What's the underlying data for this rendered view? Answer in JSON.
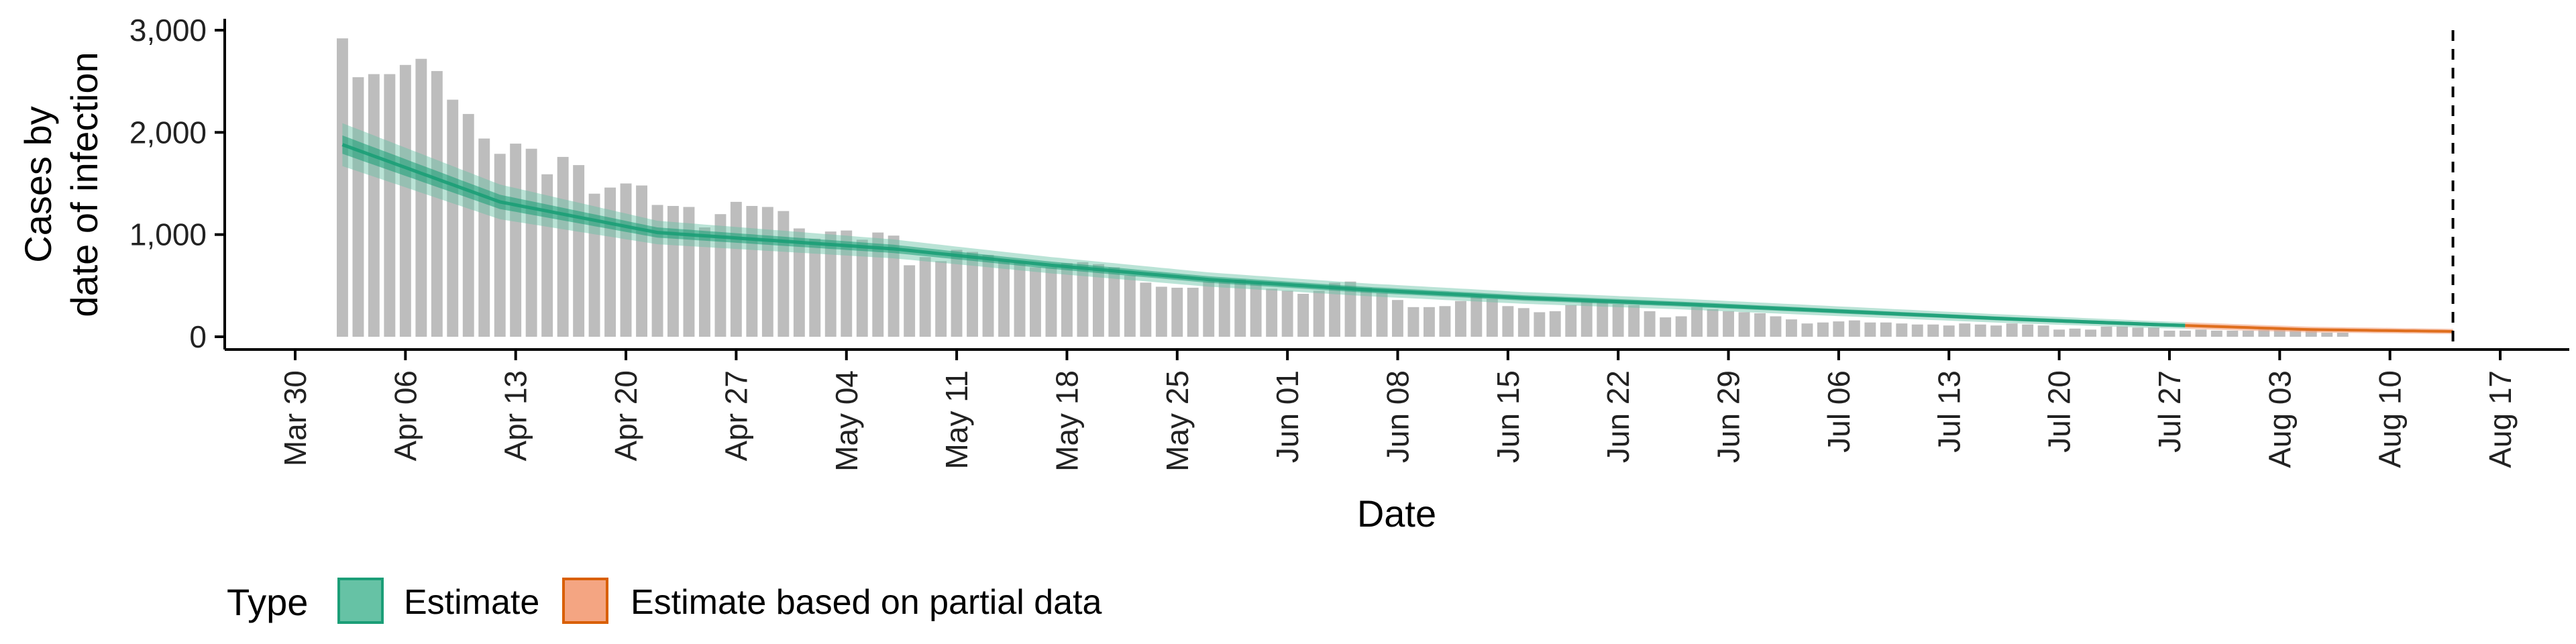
{
  "chart_data": {
    "type": "bar",
    "title": "",
    "xlabel": "Date",
    "ylabel_lines": [
      "Cases by",
      "date of infection"
    ],
    "ylim": [
      0,
      3000
    ],
    "y_ticks": [
      0,
      1000,
      2000,
      3000
    ],
    "y_tick_labels": [
      "0",
      "1,000",
      "2,000",
      "3,000"
    ],
    "x_ticks": [
      "2020-03-30",
      "2020-04-06",
      "2020-04-13",
      "2020-04-20",
      "2020-04-27",
      "2020-05-04",
      "2020-05-11",
      "2020-05-18",
      "2020-05-25",
      "2020-06-01",
      "2020-06-08",
      "2020-06-15",
      "2020-06-22",
      "2020-06-29",
      "2020-07-06",
      "2020-07-13",
      "2020-07-20",
      "2020-07-27",
      "2020-08-03",
      "2020-08-10",
      "2020-08-17"
    ],
    "x_tick_labels": [
      "Mar 30",
      "Apr 06",
      "Apr 13",
      "Apr 20",
      "Apr 27",
      "May 04",
      "May 11",
      "May 18",
      "May 25",
      "Jun 01",
      "Jun 08",
      "Jun 15",
      "Jun 22",
      "Jun 29",
      "Jul 06",
      "Jul 13",
      "Jul 20",
      "Jul 27",
      "Aug 03",
      "Aug 10",
      "Aug 17"
    ],
    "x_start": "2020-04-02",
    "bar_series": {
      "name": "Cases by date of infection",
      "color": "#bdbdbd",
      "values": [
        2920,
        2540,
        2570,
        2570,
        2660,
        2720,
        2600,
        2320,
        2180,
        1940,
        1790,
        1890,
        1840,
        1590,
        1760,
        1680,
        1400,
        1460,
        1500,
        1480,
        1290,
        1280,
        1270,
        1070,
        1200,
        1320,
        1280,
        1270,
        1230,
        1060,
        960,
        1030,
        1040,
        950,
        1020,
        990,
        700,
        780,
        740,
        850,
        830,
        800,
        760,
        730,
        680,
        680,
        720,
        730,
        710,
        680,
        600,
        530,
        490,
        480,
        480,
        540,
        560,
        560,
        530,
        470,
        450,
        420,
        450,
        530,
        540,
        480,
        430,
        360,
        290,
        290,
        300,
        350,
        390,
        370,
        300,
        280,
        240,
        250,
        310,
        350,
        340,
        320,
        310,
        250,
        190,
        200,
        290,
        270,
        250,
        240,
        230,
        200,
        170,
        130,
        140,
        150,
        160,
        140,
        140,
        130,
        120,
        120,
        110,
        130,
        120,
        110,
        130,
        120,
        110,
        70,
        80,
        70,
        100,
        100,
        90,
        90,
        60,
        60,
        70,
        60,
        60,
        60,
        70,
        80,
        60,
        60,
        40,
        40
      ]
    },
    "series": [
      {
        "name": "Estimate",
        "color": "#1b9e77",
        "fill": "#66c2a5",
        "start": "2020-04-02",
        "end": "2020-07-28",
        "median_key": [
          [
            0,
            1880
          ],
          [
            10,
            1320
          ],
          [
            20,
            1020
          ],
          [
            35,
            860
          ],
          [
            45,
            700
          ],
          [
            55,
            560
          ],
          [
            65,
            460
          ],
          [
            75,
            380
          ],
          [
            85,
            320
          ],
          [
            95,
            250
          ],
          [
            105,
            180
          ],
          [
            115,
            120
          ],
          [
            125,
            70
          ],
          [
            135,
            50
          ],
          [
            141,
            40
          ],
          [
            150,
            40
          ]
        ],
        "ci90_width_key": [
          [
            0,
            420
          ],
          [
            10,
            340
          ],
          [
            20,
            230
          ],
          [
            40,
            170
          ],
          [
            60,
            130
          ],
          [
            80,
            110
          ],
          [
            100,
            90
          ],
          [
            120,
            60
          ],
          [
            150,
            40
          ]
        ],
        "ci50_width_key": [
          [
            0,
            180
          ],
          [
            10,
            140
          ],
          [
            20,
            100
          ],
          [
            40,
            75
          ],
          [
            60,
            60
          ],
          [
            80,
            50
          ],
          [
            100,
            40
          ],
          [
            120,
            30
          ],
          [
            150,
            20
          ]
        ]
      },
      {
        "name": "Estimate based on partial data",
        "color": "#d95f02",
        "fill": "#f4a582",
        "start": "2020-07-28",
        "end": "2020-08-14"
      }
    ],
    "vline_date": "2020-08-14",
    "legend": {
      "title": "Type",
      "position": "bottom",
      "items": [
        "Estimate",
        "Estimate based on partial data"
      ]
    },
    "grid": false
  }
}
